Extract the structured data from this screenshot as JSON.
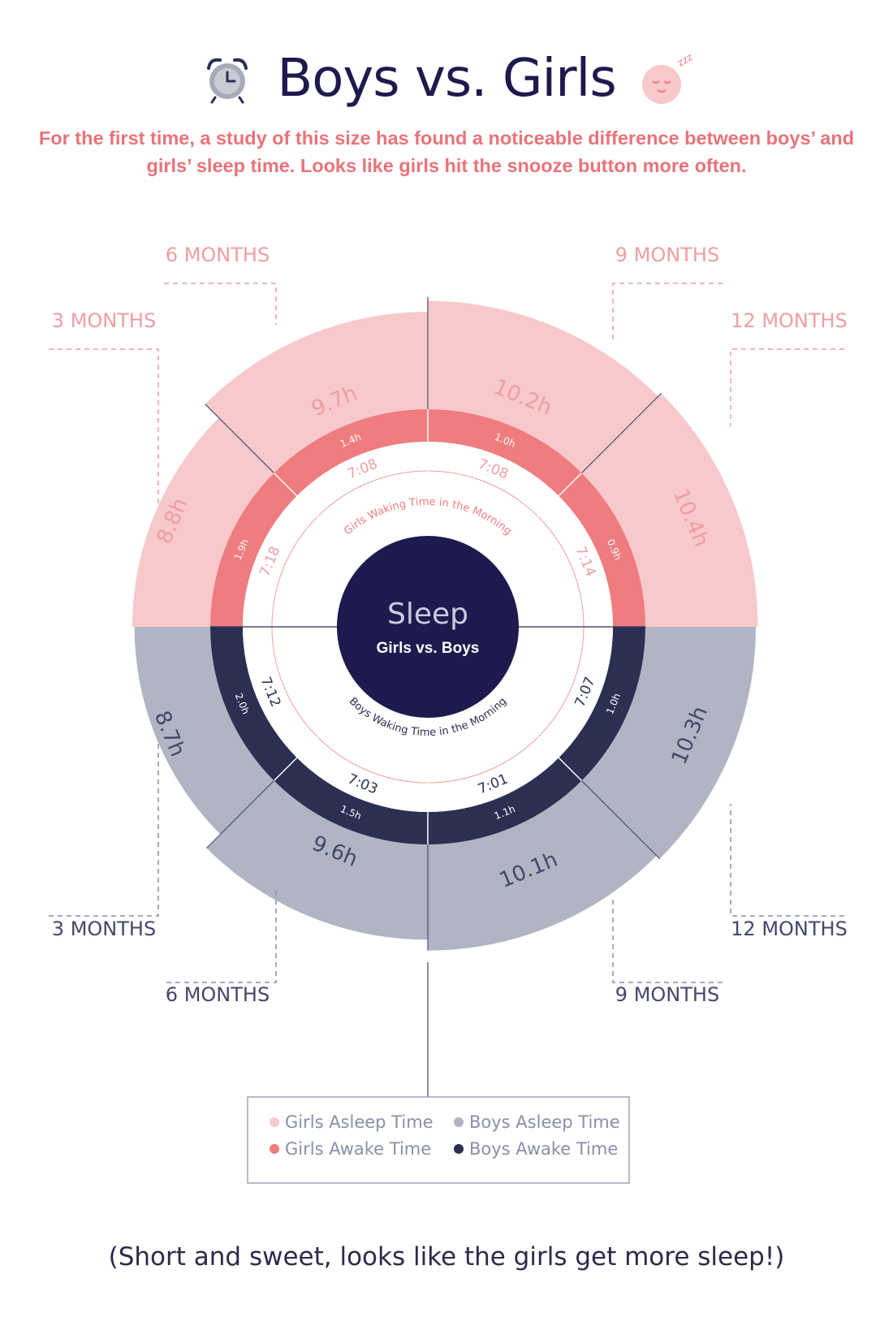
{
  "header": {
    "title": "Boys vs. Girls",
    "subtitle": "For the first time, a study of this size has found a noticeable difference between boys’ and girls’ sleep time. Looks like girls hit the snooze button more often.",
    "left_icon": "alarm-clock-icon",
    "right_icon": "sleeping-face-icon",
    "right_icon_text": "zzz"
  },
  "center": {
    "title": "Sleep",
    "subtitle": "Girls vs. Boys",
    "girls_ring_label": "Girls Waking Time in the Morning",
    "boys_ring_label": "Boys Waking Time in the Morning"
  },
  "chart_data": {
    "type": "radial-bar",
    "categories": [
      "3 MONTHS",
      "6 MONTHS",
      "9 MONTHS",
      "12 MONTHS"
    ],
    "series": [
      {
        "name": "Girls Asleep Time",
        "color": "#f7c9cb",
        "values": [
          8.8,
          9.7,
          10.2,
          10.4
        ],
        "labels": [
          "8.8h",
          "9.7h",
          "10.2h",
          "10.4h"
        ]
      },
      {
        "name": "Girls Awake Time",
        "color": "#ef7c7e",
        "values": [
          1.9,
          1.4,
          1.0,
          0.9
        ],
        "labels": [
          "1.9h",
          "1.4h",
          "1.0h",
          "0.9h"
        ]
      },
      {
        "name": "Boys Asleep Time",
        "color": "#b1b4c3",
        "values": [
          8.7,
          9.6,
          10.1,
          10.3
        ],
        "labels": [
          "8.7h",
          "9.6h",
          "10.1h",
          "10.3h"
        ]
      },
      {
        "name": "Boys Awake Time",
        "color": "#2b2f52",
        "values": [
          2.0,
          1.5,
          1.1,
          1.0
        ],
        "labels": [
          "2.0h",
          "1.5h",
          "1.1h",
          "1.0h"
        ]
      }
    ],
    "girls_waking_time": [
      "7:18",
      "7:08",
      "7:08",
      "7:14"
    ],
    "boys_waking_time": [
      "7:12",
      "7:03",
      "7:01",
      "7:07"
    ],
    "legend": {
      "placement": "bottom-center",
      "items": [
        {
          "label": "Girls Asleep Time",
          "color": "#f7c9cb"
        },
        {
          "label": "Boys Asleep Time",
          "color": "#b1b4c3"
        },
        {
          "label": "Girls Awake Time",
          "color": "#ef7c7e"
        },
        {
          "label": "Boys Awake Time",
          "color": "#2b2f52"
        }
      ]
    }
  },
  "footer": {
    "note": "(Short and sweet, looks like the girls get more sleep!)"
  }
}
